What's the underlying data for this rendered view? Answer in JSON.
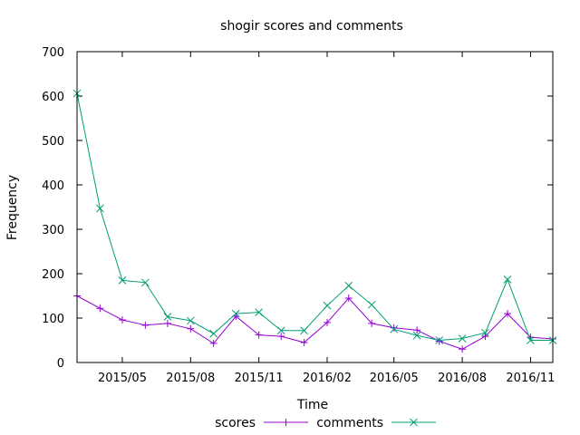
{
  "chart_data": {
    "type": "line",
    "title": "shogir scores and comments",
    "xlabel": "Time",
    "ylabel": "Frequency",
    "ylim": [
      0,
      700
    ],
    "yticks": [
      0,
      100,
      200,
      300,
      400,
      500,
      600,
      700
    ],
    "xlim": [
      "2015-03-01",
      "2016-12-01"
    ],
    "xticks": [
      {
        "label": "2015/05",
        "date": "2015-05-01"
      },
      {
        "label": "2015/08",
        "date": "2015-08-01"
      },
      {
        "label": "2015/11",
        "date": "2015-11-01"
      },
      {
        "label": "2016/02",
        "date": "2016-02-01"
      },
      {
        "label": "2016/05",
        "date": "2016-05-01"
      },
      {
        "label": "2016/08",
        "date": "2016-08-01"
      },
      {
        "label": "2016/11",
        "date": "2016-11-01"
      }
    ],
    "x": [
      "2015-03-01",
      "2015-04-01",
      "2015-05-01",
      "2015-06-01",
      "2015-07-01",
      "2015-08-01",
      "2015-09-01",
      "2015-10-01",
      "2015-11-01",
      "2015-12-01",
      "2016-01-01",
      "2016-02-01",
      "2016-03-01",
      "2016-04-01",
      "2016-05-01",
      "2016-06-01",
      "2016-07-01",
      "2016-08-01",
      "2016-09-01",
      "2016-10-01",
      "2016-11-01",
      "2016-12-01"
    ],
    "series": [
      {
        "name": "scores",
        "color": "#9400d3",
        "marker": "plus",
        "values": [
          150,
          122,
          96,
          84,
          88,
          76,
          43,
          104,
          62,
          59,
          45,
          90,
          145,
          88,
          78,
          73,
          48,
          30,
          59,
          110,
          57,
          53
        ]
      },
      {
        "name": "comments",
        "color": "#009e73",
        "marker": "cross",
        "values": [
          606,
          347,
          185,
          180,
          103,
          94,
          65,
          110,
          113,
          72,
          72,
          128,
          173,
          130,
          75,
          61,
          50,
          54,
          67,
          187,
          50,
          50
        ]
      }
    ],
    "legend": "bottom-center",
    "grid": false
  }
}
